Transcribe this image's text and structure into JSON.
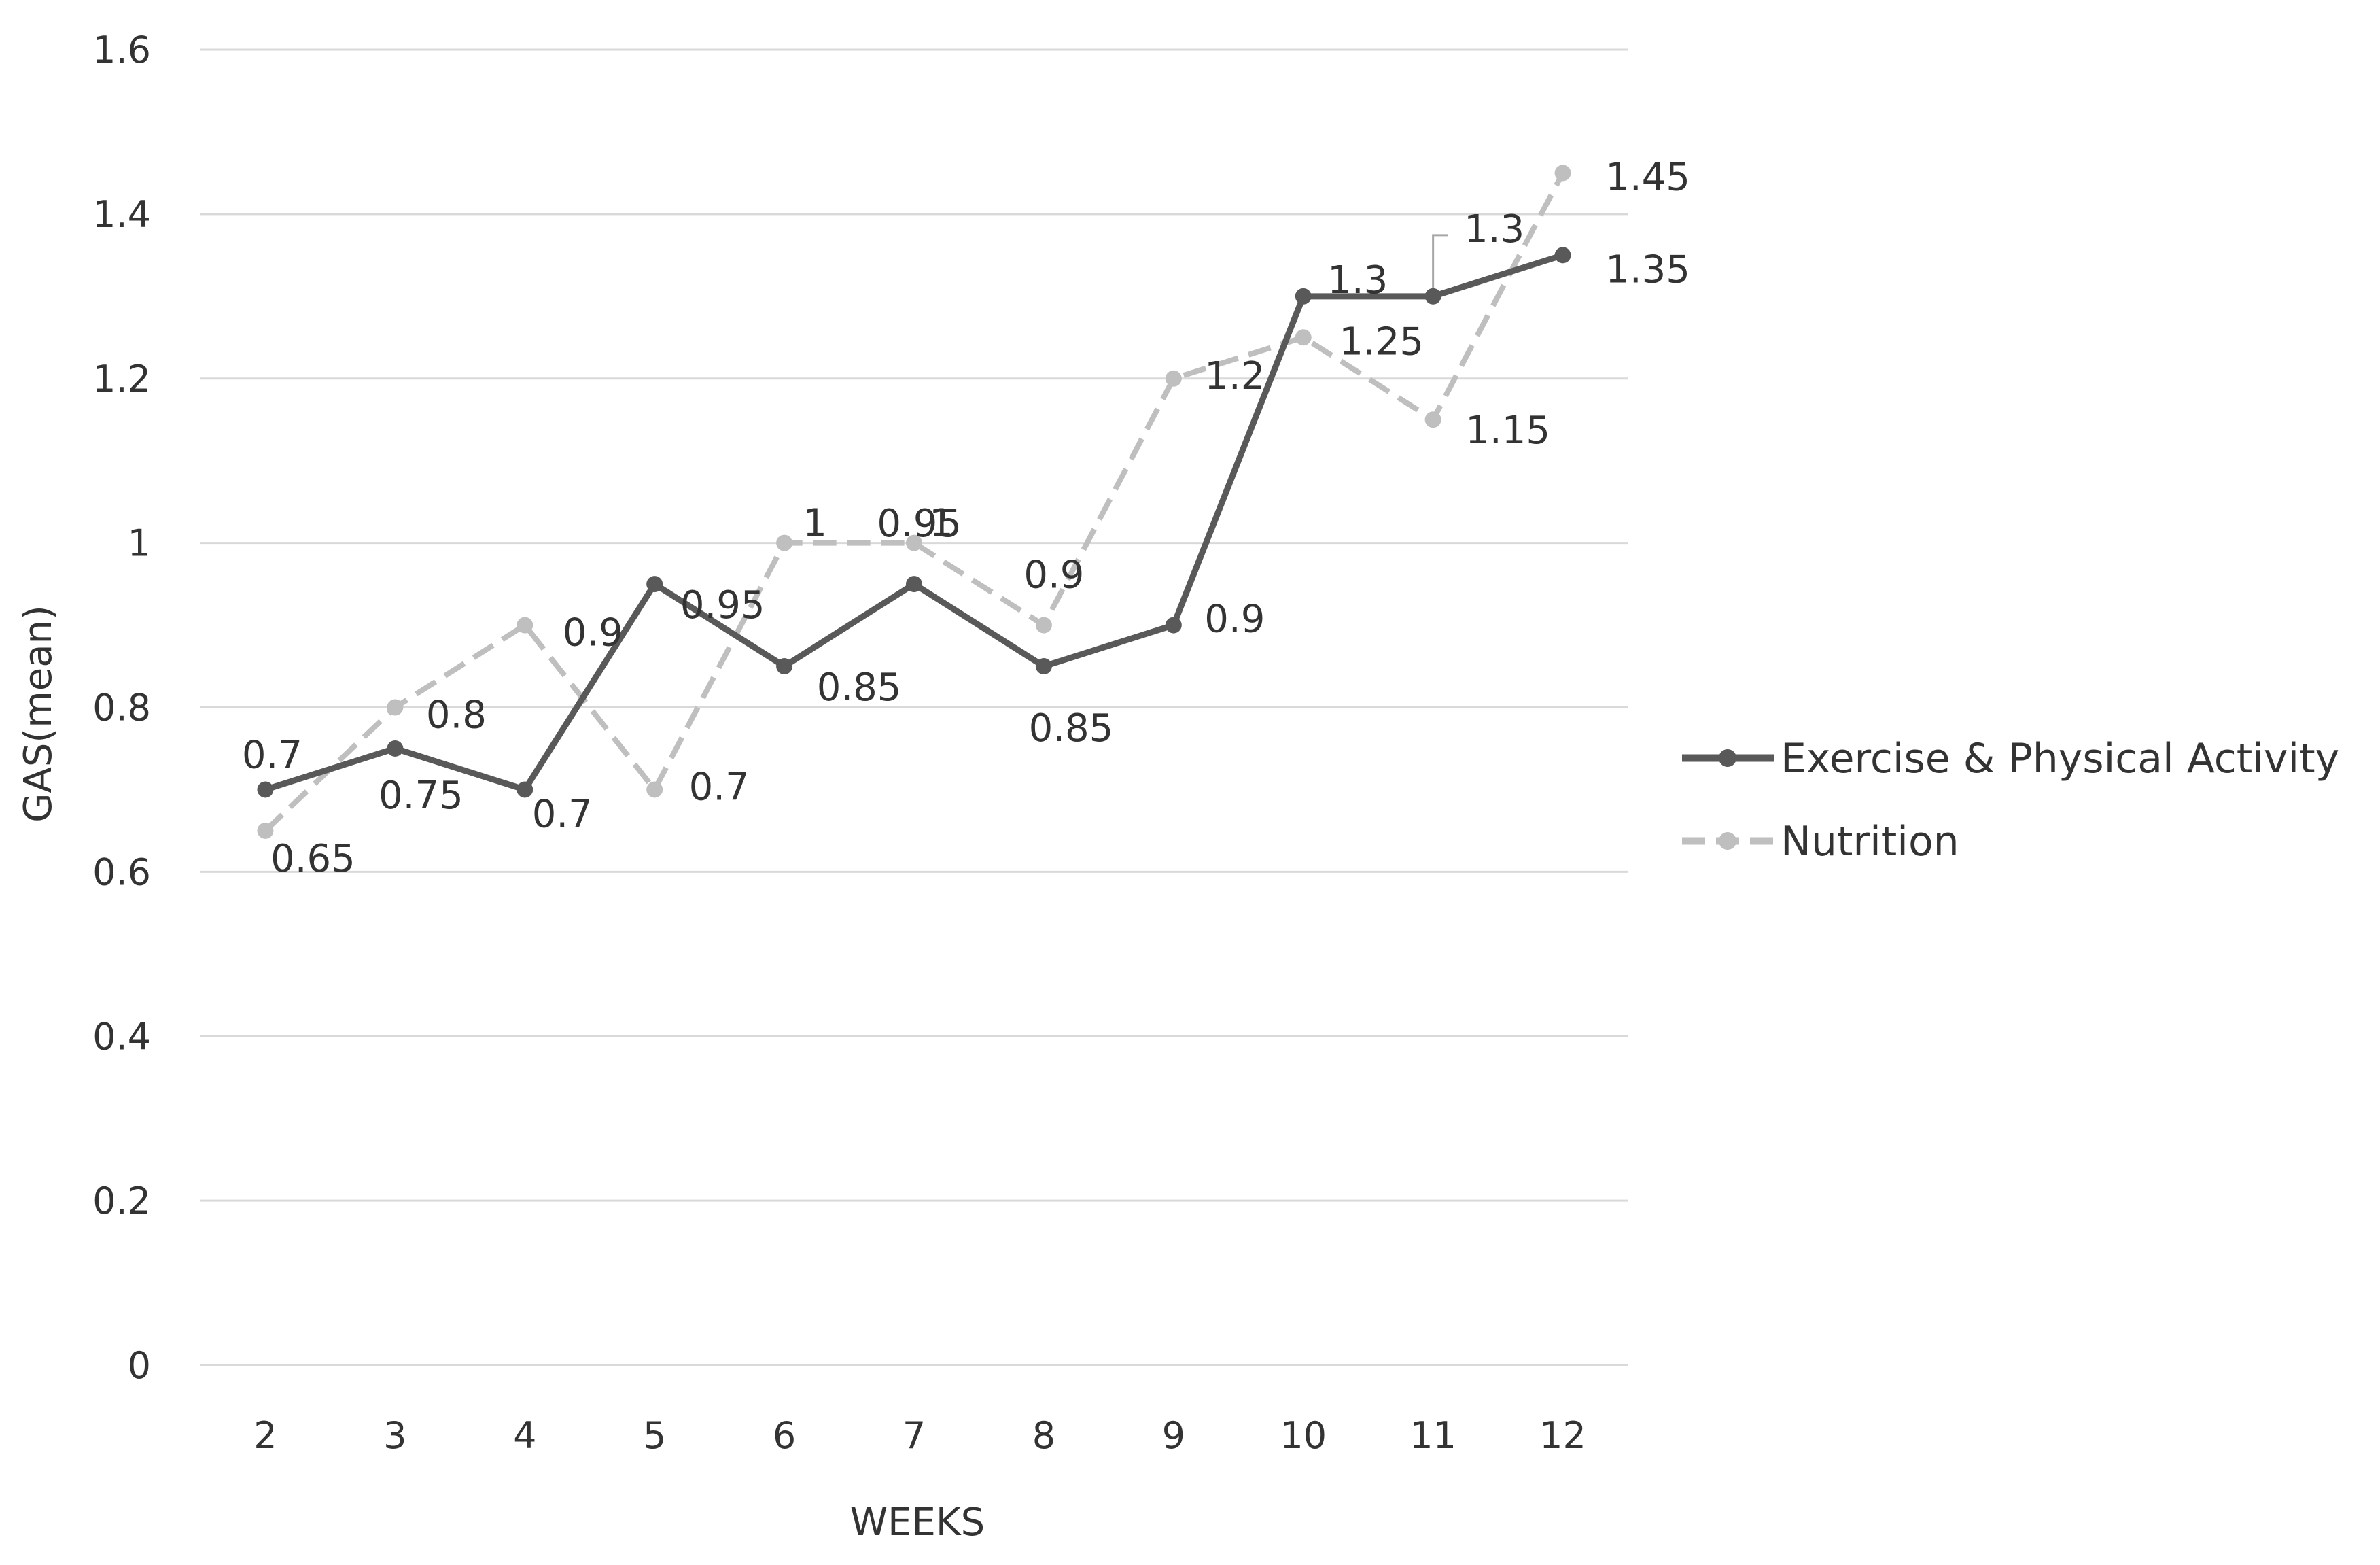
{
  "chart_data": {
    "type": "line",
    "title": "",
    "xlabel": "WEEKS",
    "ylabel": "GAS(mean)",
    "ylim": [
      0,
      1.6
    ],
    "yticks": [
      "0",
      "0.2",
      "0.4",
      "0.6",
      "0.8",
      "1",
      "1.2",
      "1.4",
      "1.6"
    ],
    "categories": [
      "2",
      "3",
      "4",
      "5",
      "6",
      "7",
      "8",
      "9",
      "10",
      "11",
      "12"
    ],
    "grid": true,
    "legend_position": "right",
    "series": [
      {
        "name": "Exercise & Physical Activity",
        "color": "#595959",
        "dash": "solid",
        "values": [
          0.7,
          0.75,
          0.7,
          0.95,
          0.85,
          0.95,
          0.85,
          0.9,
          1.3,
          1.3,
          1.35
        ],
        "labels": [
          "0.7",
          "0.75",
          "0.7",
          "0.95",
          "0.85",
          "0.95",
          "0.85",
          "0.9",
          "1.3",
          "1.3",
          "1.35"
        ]
      },
      {
        "name": "Nutrition",
        "color": "#bfbfbf",
        "dash": "dashed",
        "values": [
          0.65,
          0.8,
          0.9,
          0.7,
          1.0,
          1.0,
          0.9,
          1.2,
          1.25,
          1.15,
          1.45
        ],
        "labels": [
          "0.65",
          "0.8",
          "0.9",
          "0.7",
          "1",
          "1",
          "0.9",
          "1.2",
          "1.25",
          "1.15",
          "1.45"
        ]
      }
    ]
  }
}
